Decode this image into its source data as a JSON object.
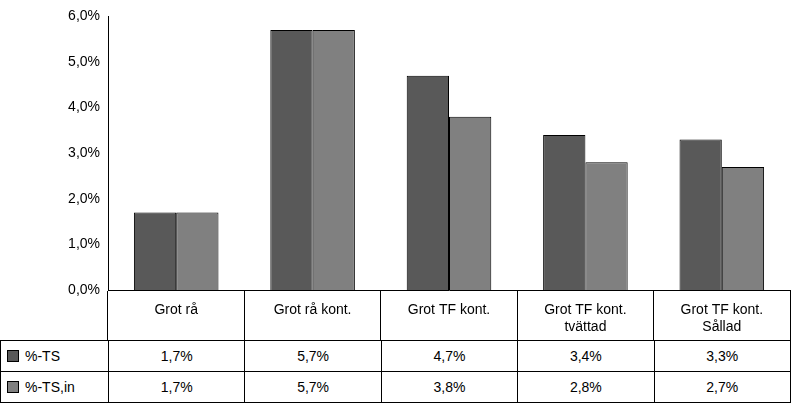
{
  "chart_data": {
    "type": "bar",
    "categories": [
      "Grot rå",
      "Grot rå kont.",
      "Grot TF kont.",
      "Grot TF kont. tvättad",
      "Grot TF kont. Sållad"
    ],
    "series": [
      {
        "name": "%-TS",
        "color": "#595959",
        "values": [
          1.7,
          5.7,
          4.7,
          3.4,
          3.3
        ],
        "value_labels": [
          "1,7%",
          "5,7%",
          "4,7%",
          "3,4%",
          "3,3%"
        ]
      },
      {
        "name": "%-TS,in",
        "color": "#808080",
        "values": [
          1.7,
          5.7,
          3.8,
          2.8,
          2.7
        ],
        "value_labels": [
          "1,7%",
          "5,7%",
          "3,8%",
          "2,8%",
          "2,7%"
        ]
      }
    ],
    "ylim": [
      0,
      6
    ],
    "yticks": [
      {
        "value": 0,
        "label": "0,0%"
      },
      {
        "value": 1,
        "label": "1,0%"
      },
      {
        "value": 2,
        "label": "2,0%"
      },
      {
        "value": 3,
        "label": "3,0%"
      },
      {
        "value": 4,
        "label": "4,0%"
      },
      {
        "value": 5,
        "label": "5,0%"
      },
      {
        "value": 6,
        "label": "6,0%"
      }
    ],
    "grid": false
  }
}
